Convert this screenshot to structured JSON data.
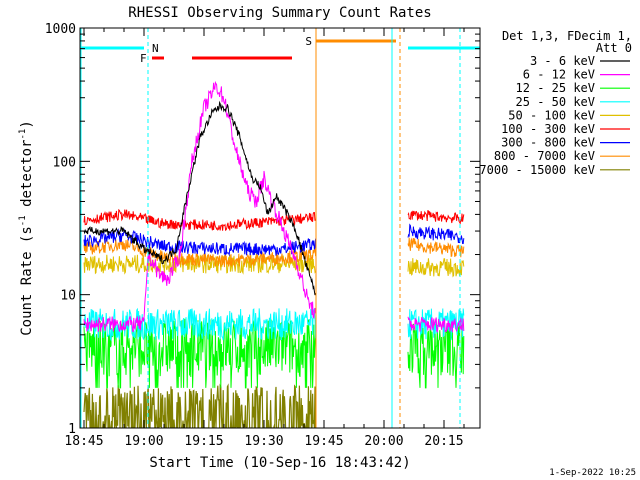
{
  "chart_data": {
    "type": "line",
    "title": "RHESSI Observing Summary Count Rates",
    "xlabel": "Start Time (10-Sep-16 18:43:42)",
    "ylabel_main": "Count Rate (s",
    "ylabel_sup1": "-1",
    "ylabel_mid": " detector",
    "ylabel_sup2": "-1",
    "ylabel_end": ")",
    "yscale": "log",
    "ylim": [
      1,
      1000
    ],
    "xlim": [
      "18:44",
      "20:24"
    ],
    "x_ticks": [
      "18:45",
      "19:00",
      "19:15",
      "19:30",
      "19:45",
      "20:00",
      "20:15"
    ],
    "y_ticks": [
      "1",
      "10",
      "100",
      "1000"
    ],
    "legend_header": [
      "Det 1,3, FDecim 1,",
      "Att 0"
    ],
    "footer": "1-Sep-2022 10:25",
    "flag_labels": {
      "N": "N",
      "F": "F",
      "S": "S"
    },
    "data_gaps": [
      [
        "19:43",
        "20:06"
      ]
    ],
    "series": [
      {
        "name": "3 - 6 keV",
        "color": "#000000",
        "points": [
          [
            "18:45",
            30
          ],
          [
            "18:55",
            30
          ],
          [
            "19:00",
            22
          ],
          [
            "19:05",
            18
          ],
          [
            "19:08",
            22
          ],
          [
            "19:11",
            60
          ],
          [
            "19:14",
            150
          ],
          [
            "19:17",
            230
          ],
          [
            "19:19",
            260
          ],
          [
            "19:21",
            250
          ],
          [
            "19:24",
            150
          ],
          [
            "19:27",
            75
          ],
          [
            "19:29",
            65
          ],
          [
            "19:31",
            40
          ],
          [
            "19:33",
            55
          ],
          [
            "19:35",
            45
          ],
          [
            "19:38",
            30
          ],
          [
            "19:41",
            15
          ],
          [
            "19:43",
            10
          ]
        ]
      },
      {
        "name": "6 - 12 keV",
        "color": "#ff00ff",
        "points": [
          [
            "18:45",
            6
          ],
          [
            "19:00",
            6
          ],
          [
            "19:01",
            20
          ],
          [
            "19:04",
            14
          ],
          [
            "19:06",
            13
          ],
          [
            "19:09",
            20
          ],
          [
            "19:12",
            100
          ],
          [
            "19:15",
            250
          ],
          [
            "19:18",
            370
          ],
          [
            "19:20",
            300
          ],
          [
            "19:23",
            120
          ],
          [
            "19:26",
            60
          ],
          [
            "19:28",
            50
          ],
          [
            "19:30",
            75
          ],
          [
            "19:32",
            50
          ],
          [
            "19:35",
            30
          ],
          [
            "19:38",
            18
          ],
          [
            "19:41",
            9
          ],
          [
            "19:43",
            7
          ],
          [
            "20:06",
            6
          ],
          [
            "20:20",
            6
          ]
        ]
      },
      {
        "name": "12 - 25 keV",
        "color": "#00ff00",
        "points": [
          [
            "18:45",
            4
          ],
          [
            "19:43",
            4
          ],
          [
            "20:06",
            4
          ],
          [
            "20:20",
            4
          ]
        ]
      },
      {
        "name": "25 - 50 keV",
        "color": "#00ffff",
        "points": [
          [
            "18:45",
            6
          ],
          [
            "19:43",
            6
          ],
          [
            "20:06",
            6
          ],
          [
            "20:20",
            6
          ]
        ]
      },
      {
        "name": "50 - 100 keV",
        "color": "#e0c000",
        "points": [
          [
            "18:45",
            17
          ],
          [
            "19:43",
            17
          ],
          [
            "20:06",
            16
          ],
          [
            "20:20",
            16
          ]
        ]
      },
      {
        "name": "100 - 300 keV",
        "color": "#ff0000",
        "points": [
          [
            "18:45",
            36
          ],
          [
            "18:55",
            40
          ],
          [
            "19:05",
            34
          ],
          [
            "19:20",
            33
          ],
          [
            "19:35",
            36
          ],
          [
            "19:43",
            38
          ],
          [
            "20:06",
            40
          ],
          [
            "20:20",
            37
          ]
        ]
      },
      {
        "name": "300 - 800 keV",
        "color": "#0000ff",
        "points": [
          [
            "18:45",
            25
          ],
          [
            "18:55",
            28
          ],
          [
            "19:05",
            23
          ],
          [
            "19:20",
            22
          ],
          [
            "19:35",
            22
          ],
          [
            "19:43",
            24
          ],
          [
            "20:06",
            30
          ],
          [
            "20:20",
            27
          ]
        ]
      },
      {
        "name": "800 - 7000 keV",
        "color": "#ff8c00",
        "points": [
          [
            "18:45",
            22
          ],
          [
            "18:55",
            24
          ],
          [
            "19:05",
            19
          ],
          [
            "19:20",
            18
          ],
          [
            "19:35",
            19
          ],
          [
            "19:43",
            20
          ],
          [
            "20:06",
            24
          ],
          [
            "20:20",
            21
          ]
        ]
      },
      {
        "name": "7000 - 15000 keV",
        "color": "#808000",
        "points": [
          [
            "18:45",
            1.5
          ],
          [
            "19:43",
            1.5
          ]
        ]
      }
    ]
  }
}
